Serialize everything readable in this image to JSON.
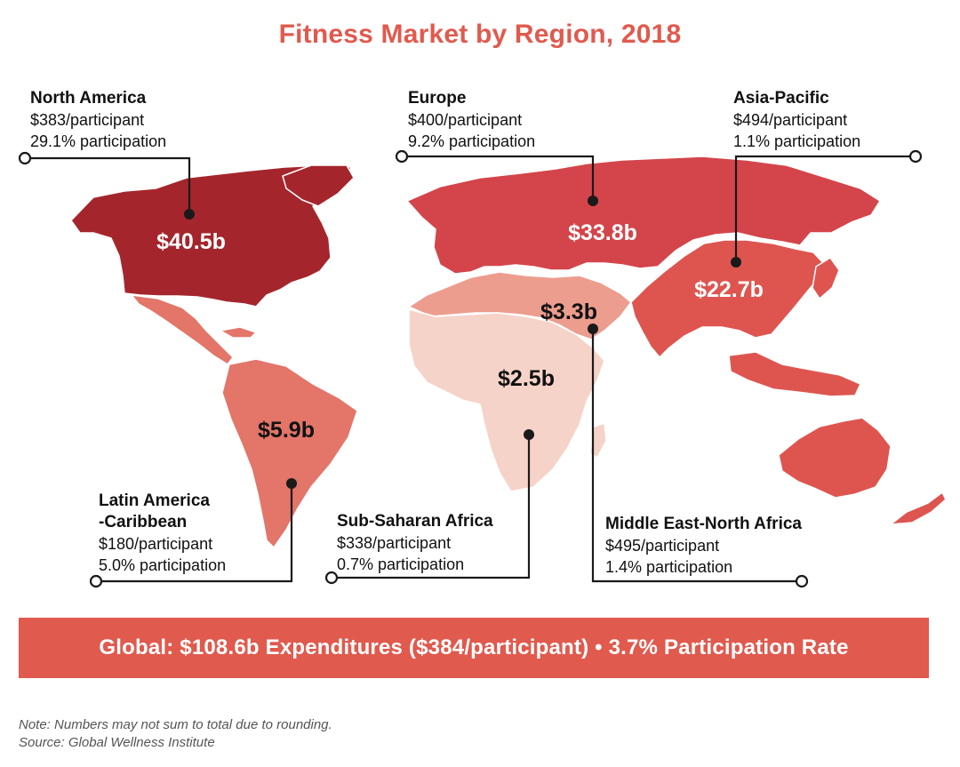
{
  "title": "Fitness Market by Region, 2018",
  "colors": {
    "accent": "#e05a4e",
    "north_america": "#a4262c",
    "europe": "#d3454a",
    "asia_pacific": "#de5550",
    "latin_america": "#e37569",
    "mena": "#ec9d8e",
    "sub_saharan": "#f6d3c8"
  },
  "regions": [
    {
      "id": "north-america",
      "name": "North America",
      "name_lines": [
        "North America"
      ],
      "spend_per": "$383/participant",
      "participation": "29.1% participation",
      "value": "$40.5b"
    },
    {
      "id": "europe",
      "name": "Europe",
      "name_lines": [
        "Europe"
      ],
      "spend_per": "$400/participant",
      "participation": "9.2% participation",
      "value": "$33.8b"
    },
    {
      "id": "asia-pacific",
      "name": "Asia-Pacific",
      "name_lines": [
        "Asia-Pacific"
      ],
      "spend_per": "$494/participant",
      "participation": "1.1% participation",
      "value": "$22.7b"
    },
    {
      "id": "latin-america",
      "name": "Latin America -Caribbean",
      "name_lines": [
        "Latin America",
        "-Caribbean"
      ],
      "spend_per": "$180/participant",
      "participation": "5.0% participation",
      "value": "$5.9b"
    },
    {
      "id": "sub-saharan-africa",
      "name": "Sub-Saharan Africa",
      "name_lines": [
        "Sub-Saharan Africa"
      ],
      "spend_per": "$338/participant",
      "participation": "0.7% participation",
      "value": "$2.5b"
    },
    {
      "id": "mena",
      "name": "Middle East-North Africa",
      "name_lines": [
        "Middle East-North Africa"
      ],
      "spend_per": "$495/participant",
      "participation": "1.4% participation",
      "value": "$3.3b"
    }
  ],
  "global": "Global: $108.6b Expenditures ($384/participant) • 3.7% Participation Rate",
  "notes": {
    "note": "Note: Numbers may not sum to total due to rounding.",
    "source": "Source: Global Wellness Institute"
  }
}
